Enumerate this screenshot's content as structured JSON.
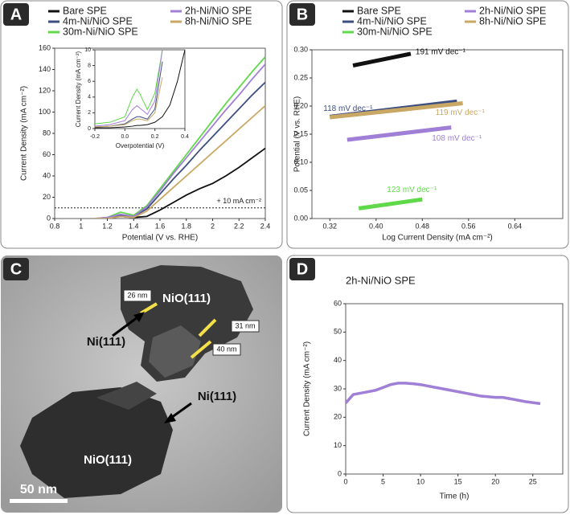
{
  "chart_data": [
    {
      "type": "line",
      "panel_label": "A",
      "xlabel": "Potential (V vs. RHE)",
      "ylabel": "Current Density (mA cm⁻²)",
      "x": [
        1.1,
        1.2,
        1.3,
        1.4,
        1.5,
        1.6,
        1.7,
        1.8,
        1.9,
        2.0,
        2.1,
        2.2,
        2.3,
        2.4
      ],
      "series": [
        {
          "name": "Bare SPE",
          "color": "#111111",
          "values": [
            0,
            0,
            2,
            1,
            2,
            8,
            15,
            22,
            28,
            33,
            40,
            48,
            57,
            66
          ]
        },
        {
          "name": "4m-Ni/NiO SPE",
          "color": "#3d4f80",
          "values": [
            0,
            0,
            3,
            2,
            9,
            23,
            37,
            50,
            64,
            77,
            90,
            103,
            116,
            128
          ]
        },
        {
          "name": "30m-Ni/NiO SPE",
          "color": "#5fd84a",
          "values": [
            0,
            1,
            6,
            3,
            12,
            28,
            44,
            60,
            76,
            92,
            108,
            123,
            138,
            152
          ]
        },
        {
          "name": "2h-Ni/NiO SPE",
          "color": "#a07fd6",
          "values": [
            0,
            1,
            4,
            2,
            11,
            26,
            42,
            57,
            72,
            87,
            102,
            116,
            131,
            145
          ]
        },
        {
          "name": "8h-Ni/NiO SPE",
          "color": "#c9a865",
          "values": [
            0,
            0,
            2,
            1,
            7,
            18,
            29,
            40,
            51,
            62,
            73,
            84,
            95,
            106
          ]
        }
      ],
      "threshold": 10,
      "annotation": "+ 10 mA cm⁻²",
      "xlim": [
        0.8,
        2.4
      ],
      "xticks": [
        0.8,
        1.0,
        1.2,
        1.4,
        1.6,
        1.8,
        2.0,
        2.2,
        2.4
      ],
      "ylim": [
        0,
        160
      ],
      "yticks": [
        0,
        20,
        40,
        60,
        80,
        100,
        120,
        140,
        160
      ]
    },
    {
      "type": "line",
      "xlabel": "Overpotential (V)",
      "ylabel": "Current Density (mA cm⁻²)",
      "x": [
        -0.2,
        -0.1,
        0,
        0.05,
        0.08,
        0.1,
        0.15,
        0.2,
        0.25,
        0.3,
        0.35,
        0.4
      ],
      "series": [
        {
          "color": "#111111",
          "values": [
            0.1,
            0.1,
            0.2,
            0.3,
            0.4,
            0.4,
            0.5,
            0.8,
            1.5,
            3,
            6,
            10
          ]
        },
        {
          "color": "#3d4f80",
          "values": [
            0.2,
            0.3,
            0.6,
            1.2,
            1.5,
            1.5,
            1.2,
            2.5,
            8.5,
            null,
            null,
            null
          ]
        },
        {
          "color": "#5fd84a",
          "values": [
            0.6,
            0.8,
            1.5,
            4,
            5,
            4.4,
            2.4,
            4.5,
            10,
            null,
            null,
            null
          ]
        },
        {
          "color": "#a07fd6",
          "values": [
            0.3,
            0.5,
            1,
            2.4,
            2.9,
            2.6,
            1.8,
            3.5,
            10,
            null,
            null,
            null
          ]
        },
        {
          "color": "#c9a865",
          "values": [
            0.2,
            0.3,
            0.5,
            1,
            1.2,
            1.2,
            1,
            2,
            6.5,
            null,
            null,
            null
          ]
        }
      ],
      "xlim": [
        -0.2,
        0.4
      ],
      "xticks": [
        -0.2,
        {
          "value": 0,
          "label": "0.0"
        },
        0.2,
        0.4
      ],
      "ylim": [
        0,
        10
      ],
      "yticks": [
        0,
        2,
        4,
        6,
        8,
        10
      ]
    },
    {
      "type": "line",
      "panel_label": "B",
      "xlabel": "Log Current Density (mA cm⁻²)",
      "ylabel": "Potential (V vs. RHE)",
      "series": [
        {
          "name": "Bare SPE",
          "color": "#111111",
          "x": [
            0.36,
            0.46
          ],
          "values": [
            0.272,
            0.293
          ],
          "slope_label": "191 mV dec⁻¹"
        },
        {
          "name": "4m-Ni/NiO SPE",
          "color": "#3d4f80",
          "x": [
            0.32,
            0.54
          ],
          "values": [
            0.181,
            0.208
          ],
          "slope_label": "118 mV dec⁻¹"
        },
        {
          "name": "30m-Ni/NiO SPE",
          "color": "#5fd84a",
          "x": [
            0.37,
            0.48
          ],
          "values": [
            0.018,
            0.034
          ],
          "slope_label": "123 mV dec⁻¹"
        },
        {
          "name": "2h-Ni/NiO SPE",
          "color": "#a07fd6",
          "x": [
            0.35,
            0.53
          ],
          "values": [
            0.14,
            0.162
          ],
          "slope_label": "108 mV dec⁻¹"
        },
        {
          "name": "8h-Ni/NiO SPE",
          "color": "#c9a865",
          "x": [
            0.32,
            0.55
          ],
          "values": [
            0.18,
            0.205
          ],
          "slope_label": "119 mV dec⁻¹"
        }
      ],
      "xlim": [
        0.289,
        0.723
      ],
      "xticks": [
        0.32,
        {
          "value": 0.4,
          "label": "0.40"
        },
        0.48,
        0.56,
        0.64
      ],
      "ylim": [
        0,
        0.3
      ],
      "yticks": [
        {
          "value": 0,
          "label": "0.00"
        },
        0.05,
        {
          "value": 0.1,
          "label": "0.10"
        },
        0.15,
        {
          "value": 0.2,
          "label": "0.20"
        },
        0.25,
        {
          "value": 0.3,
          "label": "0.30"
        }
      ]
    },
    {
      "type": "line",
      "panel_label": "D",
      "title": "2h-Ni/NiO SPE",
      "xlabel": "Time (h)",
      "ylabel": "Current Density (mA cm⁻²)",
      "x": [
        0,
        1,
        2,
        3,
        4,
        5,
        6,
        7,
        8,
        9,
        10,
        12,
        14,
        16,
        18,
        20,
        21,
        22,
        24,
        26
      ],
      "series": [
        {
          "color": "#a07fd6",
          "values": [
            25,
            28,
            28.5,
            29,
            29.5,
            30.5,
            31.5,
            32,
            32,
            31.8,
            31.5,
            30.5,
            29.5,
            28.5,
            27.5,
            27,
            27,
            26.5,
            25.5,
            24.8
          ]
        }
      ],
      "xlim": [
        0,
        29
      ],
      "xticks": [
        0,
        5,
        10,
        15,
        20,
        25
      ],
      "ylim": [
        0,
        60
      ],
      "yticks": [
        0,
        10,
        20,
        30,
        40,
        50,
        60
      ]
    }
  ],
  "tem_image": {
    "panel_label": "C",
    "labels": [
      "NiO(111)",
      "NiO(111)",
      "Ni(111)",
      "Ni(111)"
    ],
    "measurements": [
      "26 nm",
      "31 nm",
      "40 nm"
    ],
    "scale_bar": "50 nm"
  }
}
